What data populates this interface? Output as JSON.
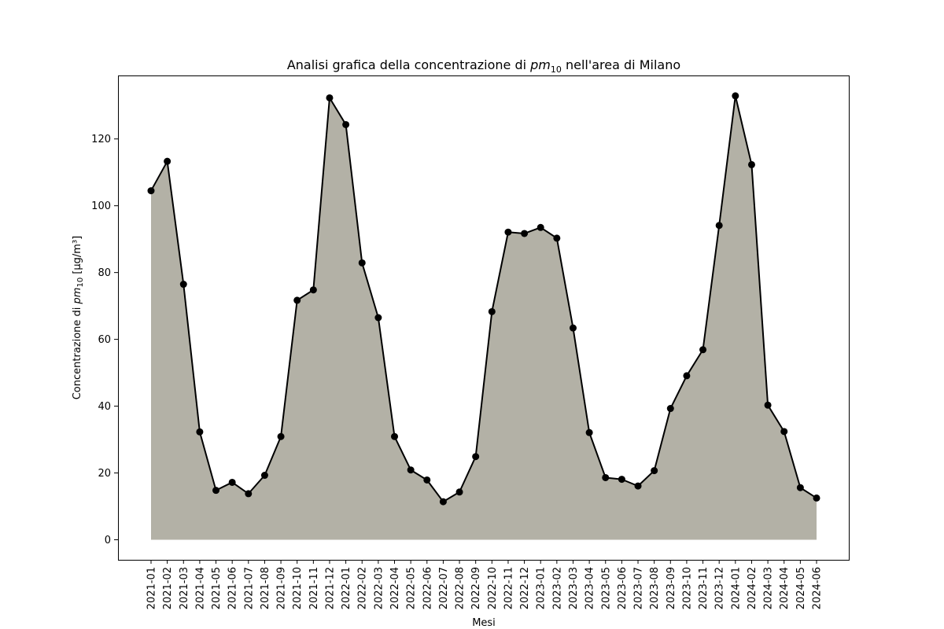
{
  "chart_data": {
    "type": "area",
    "title": {
      "prefix": "Analisi grafica della concentrazione di ",
      "math_base": "pm",
      "math_sub": "10",
      "suffix": " nell'area di Milano"
    },
    "xlabel": "Mesi",
    "ylabel": {
      "prefix": "Concentrazione di ",
      "math_base": "pm",
      "math_sub": "10",
      "suffix": " [µg/m³]"
    },
    "ylim": [
      -6,
      139
    ],
    "yticks": [
      0,
      20,
      40,
      60,
      80,
      100,
      120
    ],
    "grid": false,
    "legend": "none",
    "colors": {
      "fill": "#b3b1a6",
      "line": "#000000",
      "marker": "#000000"
    },
    "categories": [
      "2021-01",
      "2021-02",
      "2021-03",
      "2021-04",
      "2021-05",
      "2021-06",
      "2021-07",
      "2021-08",
      "2021-09",
      "2021-10",
      "2021-11",
      "2021-12",
      "2022-01",
      "2022-02",
      "2022-03",
      "2022-04",
      "2022-05",
      "2022-06",
      "2022-07",
      "2022-08",
      "2022-09",
      "2022-10",
      "2022-11",
      "2022-12",
      "2023-01",
      "2023-02",
      "2023-03",
      "2023-04",
      "2023-05",
      "2023-06",
      "2023-07",
      "2023-08",
      "2023-09",
      "2023-10",
      "2023-11",
      "2023-12",
      "2024-01",
      "2024-02",
      "2024-03",
      "2024-04",
      "2024-05",
      "2024-06"
    ],
    "values": [
      104.5,
      113.3,
      76.5,
      32.3,
      14.8,
      17.2,
      13.8,
      19.3,
      30.9,
      71.7,
      74.8,
      132.3,
      124.3,
      82.9,
      66.5,
      30.9,
      20.9,
      17.9,
      11.4,
      14.3,
      24.9,
      68.3,
      92.1,
      91.7,
      93.5,
      90.3,
      63.4,
      32.1,
      18.6,
      18.1,
      16.1,
      20.7,
      39.3,
      49.1,
      56.9,
      94.1,
      132.9,
      112.3,
      40.3,
      32.4,
      15.6,
      12.5
    ]
  }
}
